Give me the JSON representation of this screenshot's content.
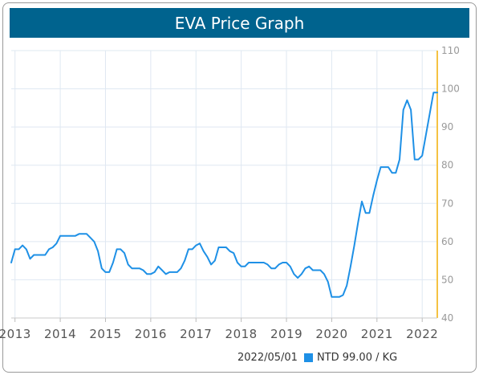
{
  "title": "EVA Price Graph",
  "legend": {
    "date": "2022/05/01",
    "value_label": "NTD 99.00 / KG",
    "swatch_color": "#1e90e6"
  },
  "colors": {
    "header_bg": "#00638e",
    "line": "#1e90e6",
    "right_axis": "#f5c242",
    "grid": "#dfe8f2"
  },
  "chart_data": {
    "type": "line",
    "title": "EVA Price Graph",
    "xlabel": "",
    "ylabel": "",
    "x_ticks": [
      "2013",
      "2014",
      "2015",
      "2016",
      "2017",
      "2018",
      "2019",
      "2020",
      "2021",
      "2022"
    ],
    "y_ticks": [
      40,
      50,
      60,
      70,
      80,
      90,
      100,
      110
    ],
    "ylim": [
      40,
      110
    ],
    "xlim": [
      "2012-12",
      "2022-05"
    ],
    "grid": true,
    "y_axis_position": "right",
    "series": [
      {
        "name": "NTD / KG",
        "points": [
          [
            "2012-12",
            54.5
          ],
          [
            "2013-01",
            58
          ],
          [
            "2013-02",
            58
          ],
          [
            "2013-03",
            59
          ],
          [
            "2013-04",
            58
          ],
          [
            "2013-05",
            55.5
          ],
          [
            "2013-06",
            56.5
          ],
          [
            "2013-07",
            56.5
          ],
          [
            "2013-08",
            56.5
          ],
          [
            "2013-09",
            56.5
          ],
          [
            "2013-10",
            58
          ],
          [
            "2013-11",
            58.5
          ],
          [
            "2013-12",
            59.5
          ],
          [
            "2014-01",
            61.5
          ],
          [
            "2014-02",
            61.5
          ],
          [
            "2014-03",
            61.5
          ],
          [
            "2014-04",
            61.5
          ],
          [
            "2014-05",
            61.5
          ],
          [
            "2014-06",
            62
          ],
          [
            "2014-07",
            62
          ],
          [
            "2014-08",
            62
          ],
          [
            "2014-09",
            61
          ],
          [
            "2014-10",
            60
          ],
          [
            "2014-11",
            57.5
          ],
          [
            "2014-12",
            53
          ],
          [
            "2015-01",
            52
          ],
          [
            "2015-02",
            52
          ],
          [
            "2015-03",
            54.5
          ],
          [
            "2015-04",
            58
          ],
          [
            "2015-05",
            58
          ],
          [
            "2015-06",
            57
          ],
          [
            "2015-07",
            54
          ],
          [
            "2015-08",
            53
          ],
          [
            "2015-09",
            53
          ],
          [
            "2015-10",
            53
          ],
          [
            "2015-11",
            52.5
          ],
          [
            "2015-12",
            51.5
          ],
          [
            "2016-01",
            51.5
          ],
          [
            "2016-02",
            52
          ],
          [
            "2016-03",
            53.5
          ],
          [
            "2016-04",
            52.5
          ],
          [
            "2016-05",
            51.5
          ],
          [
            "2016-06",
            52
          ],
          [
            "2016-07",
            52
          ],
          [
            "2016-08",
            52
          ],
          [
            "2016-09",
            53
          ],
          [
            "2016-10",
            55
          ],
          [
            "2016-11",
            58
          ],
          [
            "2016-12",
            58
          ],
          [
            "2017-01",
            59
          ],
          [
            "2017-02",
            59.5
          ],
          [
            "2017-03",
            57.5
          ],
          [
            "2017-04",
            56
          ],
          [
            "2017-05",
            54
          ],
          [
            "2017-06",
            55
          ],
          [
            "2017-07",
            58.5
          ],
          [
            "2017-08",
            58.5
          ],
          [
            "2017-09",
            58.5
          ],
          [
            "2017-10",
            57.5
          ],
          [
            "2017-11",
            57
          ],
          [
            "2017-12",
            54.5
          ],
          [
            "2018-01",
            53.5
          ],
          [
            "2018-02",
            53.5
          ],
          [
            "2018-03",
            54.5
          ],
          [
            "2018-04",
            54.5
          ],
          [
            "2018-05",
            54.5
          ],
          [
            "2018-06",
            54.5
          ],
          [
            "2018-07",
            54.5
          ],
          [
            "2018-08",
            54
          ],
          [
            "2018-09",
            53
          ],
          [
            "2018-10",
            53
          ],
          [
            "2018-11",
            54
          ],
          [
            "2018-12",
            54.5
          ],
          [
            "2019-01",
            54.5
          ],
          [
            "2019-02",
            53.5
          ],
          [
            "2019-03",
            51.5
          ],
          [
            "2019-04",
            50.5
          ],
          [
            "2019-05",
            51.5
          ],
          [
            "2019-06",
            53
          ],
          [
            "2019-07",
            53.5
          ],
          [
            "2019-08",
            52.5
          ],
          [
            "2019-09",
            52.5
          ],
          [
            "2019-10",
            52.5
          ],
          [
            "2019-11",
            51.5
          ],
          [
            "2019-12",
            49.5
          ],
          [
            "2020-01",
            45.5
          ],
          [
            "2020-02",
            45.5
          ],
          [
            "2020-03",
            45.5
          ],
          [
            "2020-04",
            46
          ],
          [
            "2020-05",
            48.5
          ],
          [
            "2020-06",
            53.5
          ],
          [
            "2020-07",
            59
          ],
          [
            "2020-08",
            65
          ],
          [
            "2020-09",
            70.5
          ],
          [
            "2020-10",
            67.5
          ],
          [
            "2020-11",
            67.5
          ],
          [
            "2020-12",
            72
          ],
          [
            "2021-01",
            76
          ],
          [
            "2021-02",
            79.5
          ],
          [
            "2021-03",
            79.5
          ],
          [
            "2021-04",
            79.5
          ],
          [
            "2021-05",
            78
          ],
          [
            "2021-06",
            78
          ],
          [
            "2021-07",
            81.5
          ],
          [
            "2021-08",
            94.5
          ],
          [
            "2021-09",
            97
          ],
          [
            "2021-10",
            94.5
          ],
          [
            "2021-11",
            81.5
          ],
          [
            "2021-12",
            81.5
          ],
          [
            "2022-01",
            82.5
          ],
          [
            "2022-02",
            88
          ],
          [
            "2022-03",
            93.5
          ],
          [
            "2022-04",
            99
          ],
          [
            "2022-05",
            99
          ]
        ]
      }
    ]
  }
}
